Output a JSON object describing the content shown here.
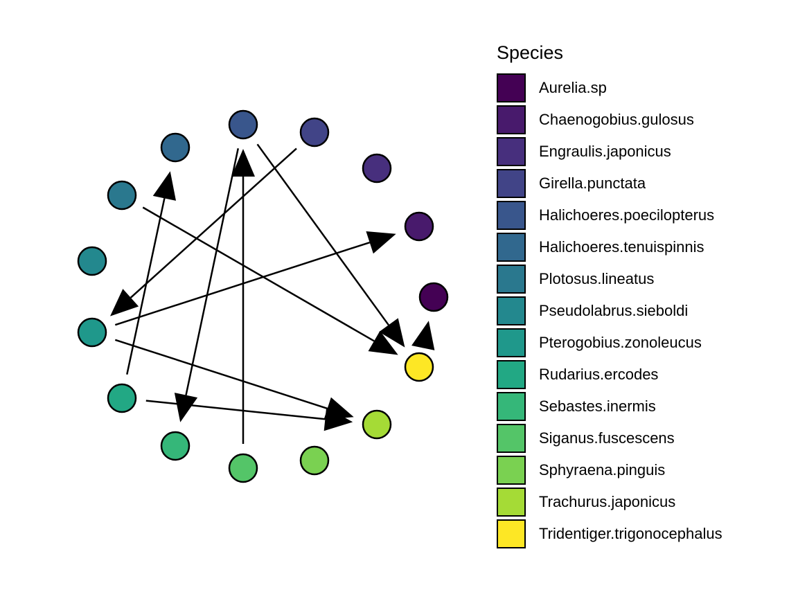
{
  "legend": {
    "title": "Species"
  },
  "species": [
    {
      "name": "Aurelia.sp",
      "color": "#440154"
    },
    {
      "name": "Chaenogobius.gulosus",
      "color": "#481A6C"
    },
    {
      "name": "Engraulis.japonicus",
      "color": "#472F7D"
    },
    {
      "name": "Girella.punctata",
      "color": "#414487"
    },
    {
      "name": "Halichoeres.poecilopterus",
      "color": "#39568C"
    },
    {
      "name": "Halichoeres.tenuispinnis",
      "color": "#31688E"
    },
    {
      "name": "Plotosus.lineatus",
      "color": "#2A788E"
    },
    {
      "name": "Pseudolabrus.sieboldi",
      "color": "#23888E"
    },
    {
      "name": "Pterogobius.zonoleucus",
      "color": "#1F988B"
    },
    {
      "name": "Rudarius.ercodes",
      "color": "#22A884"
    },
    {
      "name": "Sebastes.inermis",
      "color": "#35B779"
    },
    {
      "name": "Siganus.fuscescens",
      "color": "#54C568"
    },
    {
      "name": "Sphyraena.pinguis",
      "color": "#7AD151"
    },
    {
      "name": "Trachurus.japonicus",
      "color": "#A5DB36"
    },
    {
      "name": "Tridentiger.trigonocephalus",
      "color": "#FDE725"
    }
  ],
  "edges": [
    {
      "from": "Pterogobius.zonoleucus",
      "to": "Chaenogobius.gulosus"
    },
    {
      "from": "Pterogobius.zonoleucus",
      "to": "Trachurus.japonicus"
    },
    {
      "from": "Girella.punctata",
      "to": "Pterogobius.zonoleucus"
    },
    {
      "from": "Halichoeres.poecilopterus",
      "to": "Tridentiger.trigonocephalus"
    },
    {
      "from": "Plotosus.lineatus",
      "to": "Tridentiger.trigonocephalus"
    },
    {
      "from": "Rudarius.ercodes",
      "to": "Halichoeres.tenuispinnis"
    },
    {
      "from": "Rudarius.ercodes",
      "to": "Trachurus.japonicus"
    },
    {
      "from": "Siganus.fuscescens",
      "to": "Halichoeres.poecilopterus"
    },
    {
      "from": "Halichoeres.poecilopterus",
      "to": "Sebastes.inermis"
    },
    {
      "from": "Tridentiger.trigonocephalus",
      "to": "Aurelia.sp"
    }
  ]
}
